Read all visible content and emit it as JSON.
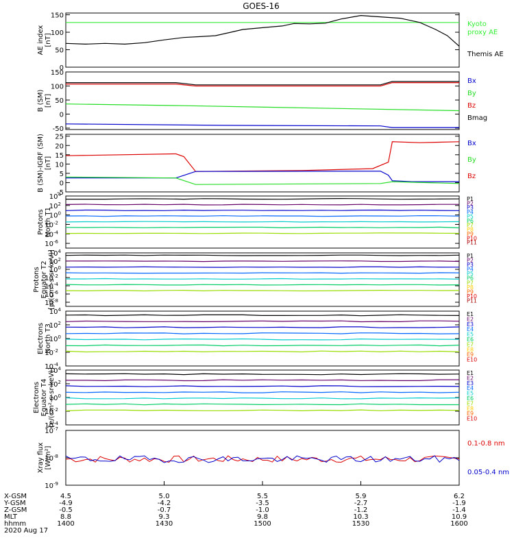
{
  "title": "GOES-16",
  "colors": {
    "black": "#000000",
    "green": "#22dd22",
    "lime": "#33ff33",
    "red": "#dd0000",
    "blue": "#0000cc",
    "ae_kyoto": "#33ee33"
  },
  "chart_data": [
    {
      "type": "line",
      "id": "ae",
      "ylabel": [
        "AE index",
        "[nT]"
      ],
      "yticks": [
        "0",
        "50",
        "100",
        "150"
      ],
      "ylim": [
        0,
        155
      ],
      "legend": [
        {
          "label": "Kyoto",
          "color": "#33ee33"
        },
        {
          "label": "proxy AE",
          "color": "#33ee33"
        },
        {
          "label": "Themis AE",
          "color": "#000000"
        }
      ],
      "series": [
        {
          "name": "Kyoto proxy AE",
          "color": "#33ee33",
          "values": [
            [
              0,
              128
            ],
            [
              1,
              128
            ]
          ]
        },
        {
          "name": "Themis AE",
          "color": "#000000",
          "values": [
            [
              0,
              68
            ],
            [
              0.05,
              66
            ],
            [
              0.1,
              68
            ],
            [
              0.15,
              66
            ],
            [
              0.2,
              70
            ],
            [
              0.25,
              78
            ],
            [
              0.3,
              85
            ],
            [
              0.35,
              88
            ],
            [
              0.38,
              90
            ],
            [
              0.42,
              100
            ],
            [
              0.45,
              108
            ],
            [
              0.5,
              113
            ],
            [
              0.55,
              118
            ],
            [
              0.58,
              125
            ],
            [
              0.62,
              124
            ],
            [
              0.66,
              126
            ],
            [
              0.7,
              138
            ],
            [
              0.75,
              148
            ],
            [
              0.8,
              144
            ],
            [
              0.85,
              140
            ],
            [
              0.9,
              128
            ],
            [
              0.94,
              108
            ],
            [
              0.97,
              90
            ],
            [
              1,
              60
            ]
          ]
        }
      ]
    },
    {
      "type": "line",
      "id": "bsm",
      "ylabel": [
        "B (SM)",
        "[nT]"
      ],
      "yticks": [
        "-50",
        "0",
        "50",
        "100",
        "150"
      ],
      "ylim": [
        -55,
        150
      ],
      "legend": [
        {
          "label": "Bx",
          "color": "#0000cc"
        },
        {
          "label": "By",
          "color": "#22dd22"
        },
        {
          "label": "Bz",
          "color": "#dd0000"
        },
        {
          "label": "Bmag",
          "color": "#000000"
        }
      ],
      "series": [
        {
          "name": "Bmag",
          "color": "#000000",
          "values": [
            [
              0,
              112
            ],
            [
              0.28,
              112
            ],
            [
              0.33,
              104
            ],
            [
              0.8,
              104
            ],
            [
              0.83,
              116
            ],
            [
              1,
              116
            ]
          ]
        },
        {
          "name": "Bz",
          "color": "#dd0000",
          "values": [
            [
              0,
              107
            ],
            [
              0.28,
              107
            ],
            [
              0.33,
              100
            ],
            [
              0.8,
              100
            ],
            [
              0.83,
              112
            ],
            [
              1,
              112
            ]
          ]
        },
        {
          "name": "By",
          "color": "#22dd22",
          "values": [
            [
              0,
              36
            ],
            [
              0.3,
              30
            ],
            [
              1,
              12
            ]
          ]
        },
        {
          "name": "Bx",
          "color": "#0000cc",
          "values": [
            [
              0,
              -35
            ],
            [
              0.4,
              -40
            ],
            [
              0.8,
              -42
            ],
            [
              0.83,
              -48
            ],
            [
              1,
              -48
            ]
          ]
        }
      ]
    },
    {
      "type": "line",
      "id": "bsm_igrf",
      "ylabel": [
        "B (SM)-IGRF (SM)",
        "[nT]"
      ],
      "yticks": [
        "-5",
        "0",
        "5",
        "10",
        "15",
        "20",
        "25"
      ],
      "ylim": [
        -5,
        26
      ],
      "legend": [
        {
          "label": "Bx",
          "color": "#0000cc"
        },
        {
          "label": "By",
          "color": "#22dd22"
        },
        {
          "label": "Bz",
          "color": "#dd0000"
        }
      ],
      "series": [
        {
          "name": "Bz",
          "color": "#dd0000",
          "values": [
            [
              0,
              14.5
            ],
            [
              0.28,
              15.5
            ],
            [
              0.3,
              14
            ],
            [
              0.33,
              6
            ],
            [
              0.6,
              6.5
            ],
            [
              0.78,
              7.5
            ],
            [
              0.82,
              11
            ],
            [
              0.83,
              22
            ],
            [
              0.9,
              21.5
            ],
            [
              1,
              22
            ]
          ]
        },
        {
          "name": "Bx",
          "color": "#0000cc",
          "values": [
            [
              0,
              2.5
            ],
            [
              0.28,
              2.5
            ],
            [
              0.33,
              6
            ],
            [
              0.8,
              6.2
            ],
            [
              0.82,
              4
            ],
            [
              0.83,
              1
            ],
            [
              0.88,
              0.5
            ],
            [
              1,
              0.5
            ]
          ]
        },
        {
          "name": "By",
          "color": "#22dd22",
          "values": [
            [
              0,
              3
            ],
            [
              0.28,
              2.5
            ],
            [
              0.33,
              -1
            ],
            [
              0.8,
              -0.5
            ],
            [
              0.83,
              0.5
            ],
            [
              1,
              -0.5
            ]
          ]
        }
      ]
    },
    {
      "type": "line",
      "id": "protons_t1",
      "log": true,
      "ylabel": [
        "Protons",
        "North T1"
      ],
      "yticks": [
        "10^4",
        "10^2",
        "10^0",
        "10^-2",
        "10^-4",
        "10^-6"
      ],
      "ylim": [
        -7,
        4
      ],
      "legend": [
        "P1",
        "P2",
        "P3",
        "P4",
        "P5",
        "P6",
        "P7",
        "P8",
        "P9",
        "P10",
        "P11"
      ]
    },
    {
      "type": "line",
      "id": "protons_t2",
      "log": true,
      "ylabel": [
        "Protons",
        "Equator T2",
        "[p/(cm²-s-sr-keV)]"
      ],
      "yticks": [
        "10^4",
        "10^2",
        "10^0",
        "10^-2",
        "10^-4",
        "10^-6",
        "10^-8"
      ],
      "ylim": [
        -9,
        4
      ],
      "legend": [
        "P1",
        "P2",
        "P3",
        "P4",
        "P5",
        "P6",
        "P7",
        "P8",
        "P9",
        "P10",
        "P11"
      ]
    },
    {
      "type": "line",
      "id": "electrons_t3",
      "log": true,
      "ylabel": [
        "Electrons",
        "North T3"
      ],
      "yticks": [
        "10^4",
        "10^2",
        "10^0",
        "10^-2",
        "10^-4"
      ],
      "ylim": [
        -4,
        4
      ],
      "legend": [
        "E1",
        "E2",
        "E3",
        "E4",
        "E5",
        "E6",
        "E7",
        "E8",
        "E9",
        "E10"
      ]
    },
    {
      "type": "line",
      "id": "electrons_t4",
      "log": true,
      "ylabel": [
        "Electrons",
        "Equator T4",
        "[e/(cm²-s-sr-keV)]"
      ],
      "yticks": [
        "10^4",
        "10^2",
        "10^0",
        "10^-2",
        "10^-4"
      ],
      "ylim": [
        -4,
        4
      ],
      "legend": [
        "E1",
        "E2",
        "E3",
        "E4",
        "E5",
        "E6",
        "E7",
        "E8",
        "E9",
        "E10"
      ]
    },
    {
      "type": "line",
      "id": "xray",
      "log": true,
      "ylabel": [
        "Xray flux",
        "[W/m²]"
      ],
      "yticks": [
        "10^-7",
        "10^-8",
        "10^-9"
      ],
      "ylim": [
        -9,
        -7
      ],
      "legend": [
        {
          "label": "0.1-0.8 nm",
          "color": "#dd0000"
        },
        {
          "label": "0.05-0.4 nm",
          "color": "#0000cc"
        }
      ]
    }
  ],
  "xaxis": {
    "row_labels": [
      "X-GSM",
      "Y-GSM",
      "Z-GSM",
      "MLT",
      "hhmm",
      "2020 Aug 17"
    ],
    "ticks": [
      {
        "frac": 0.0,
        "values": [
          "4.5",
          "-4.9",
          "-0.5",
          "8.8",
          "1400"
        ]
      },
      {
        "frac": 0.25,
        "values": [
          "5.0",
          "-4.2",
          "-0.7",
          "9.3",
          "1430"
        ]
      },
      {
        "frac": 0.5,
        "values": [
          "5.5",
          "-3.5",
          "-1.0",
          "9.8",
          "1500"
        ]
      },
      {
        "frac": 0.75,
        "values": [
          "5.9",
          "-2.7",
          "-1.2",
          "10.3",
          "1530"
        ]
      },
      {
        "frac": 1.0,
        "values": [
          "6.2",
          "-1.9",
          "-1.4",
          "10.9",
          "1600"
        ]
      }
    ]
  },
  "channel_colors": [
    "#000000",
    "#660066",
    "#0000cc",
    "#0066ff",
    "#00cccc",
    "#00cc66",
    "#99dd00",
    "#ffcc00",
    "#ff6600",
    "#dd0000",
    "#aa0000"
  ]
}
